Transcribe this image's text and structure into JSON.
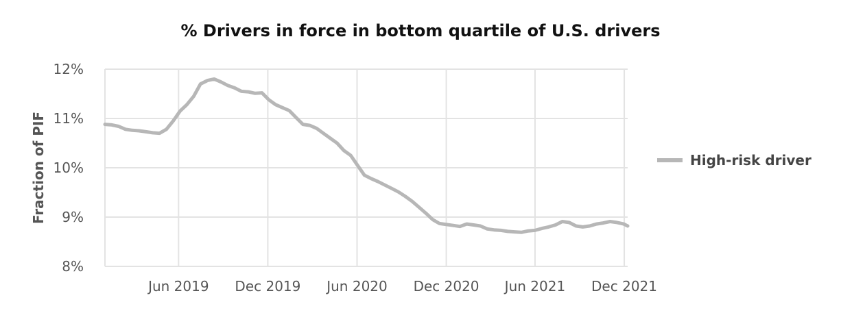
{
  "chart_data": {
    "type": "line",
    "title": "% Drivers in force in bottom quartile of U.S. drivers",
    "ylabel": "Fraction of PIF",
    "xlabel": "",
    "y_ticks": [
      "8%",
      "9%",
      "10%",
      "11%",
      "12%"
    ],
    "y_tick_values": [
      8,
      9,
      10,
      11,
      12
    ],
    "ylim": [
      8,
      12
    ],
    "x_ticks": [
      "Jun 2019",
      "Dec 2019",
      "Jun 2020",
      "Dec 2020",
      "Jun 2021",
      "Dec 2021"
    ],
    "x_tick_values": [
      "2019-06-01",
      "2019-12-01",
      "2020-06-01",
      "2020-12-01",
      "2021-06-01",
      "2021-12-01"
    ],
    "xlim": [
      "2019-01-01",
      "2021-12-08"
    ],
    "grid": true,
    "legend_position": "right",
    "series_color": "#b7b7b7",
    "series": [
      {
        "name": "High-risk driver",
        "x": [
          "2019-01-01",
          "2019-01-15",
          "2019-01-29",
          "2019-02-12",
          "2019-02-26",
          "2019-03-12",
          "2019-03-26",
          "2019-04-09",
          "2019-04-23",
          "2019-05-07",
          "2019-05-21",
          "2019-06-04",
          "2019-06-18",
          "2019-07-02",
          "2019-07-16",
          "2019-07-30",
          "2019-08-13",
          "2019-08-27",
          "2019-09-10",
          "2019-09-24",
          "2019-10-08",
          "2019-10-22",
          "2019-11-05",
          "2019-11-19",
          "2019-12-03",
          "2019-12-17",
          "2019-12-31",
          "2020-01-14",
          "2020-01-28",
          "2020-02-11",
          "2020-02-25",
          "2020-03-10",
          "2020-03-24",
          "2020-04-07",
          "2020-04-21",
          "2020-05-05",
          "2020-05-19",
          "2020-06-02",
          "2020-06-16",
          "2020-06-30",
          "2020-07-14",
          "2020-07-28",
          "2020-08-11",
          "2020-08-25",
          "2020-09-08",
          "2020-09-22",
          "2020-10-06",
          "2020-10-20",
          "2020-11-03",
          "2020-11-17",
          "2020-12-01",
          "2020-12-15",
          "2020-12-29",
          "2021-01-12",
          "2021-01-26",
          "2021-02-09",
          "2021-02-23",
          "2021-03-09",
          "2021-03-23",
          "2021-04-06",
          "2021-04-20",
          "2021-05-04",
          "2021-05-18",
          "2021-06-01",
          "2021-06-15",
          "2021-06-29",
          "2021-07-13",
          "2021-07-27",
          "2021-08-10",
          "2021-08-24",
          "2021-09-07",
          "2021-09-21",
          "2021-10-05",
          "2021-10-19",
          "2021-11-02",
          "2021-11-16",
          "2021-11-30",
          "2021-12-08"
        ],
        "values": [
          10.88,
          10.87,
          10.84,
          10.78,
          10.76,
          10.75,
          10.73,
          10.71,
          10.7,
          10.78,
          10.95,
          11.15,
          11.28,
          11.45,
          11.7,
          11.77,
          11.8,
          11.74,
          11.67,
          11.62,
          11.55,
          11.54,
          11.51,
          11.52,
          11.38,
          11.28,
          11.22,
          11.16,
          11.02,
          10.88,
          10.86,
          10.8,
          10.7,
          10.6,
          10.5,
          10.35,
          10.25,
          10.05,
          9.85,
          9.78,
          9.72,
          9.65,
          9.58,
          9.51,
          9.42,
          9.32,
          9.2,
          9.08,
          8.95,
          8.87,
          8.85,
          8.83,
          8.81,
          8.86,
          8.84,
          8.82,
          8.76,
          8.74,
          8.73,
          8.71,
          8.7,
          8.69,
          8.72,
          8.73,
          8.77,
          8.8,
          8.84,
          8.91,
          8.89,
          8.82,
          8.8,
          8.82,
          8.86,
          8.88,
          8.91,
          8.89,
          8.86,
          8.82
        ]
      }
    ]
  }
}
